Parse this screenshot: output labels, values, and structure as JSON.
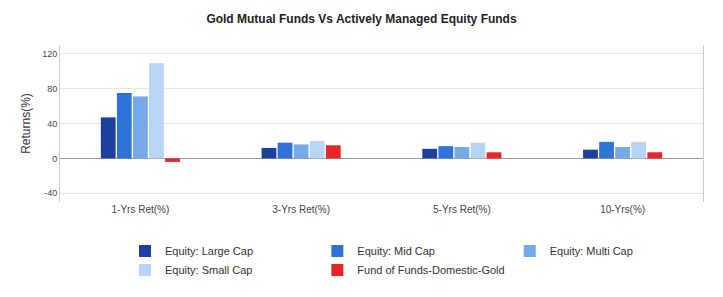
{
  "chart_data": {
    "type": "bar",
    "title": "Gold Mutual Funds Vs Actively Managed Equity Funds",
    "y_label": "Returns(%)",
    "categories": [
      "1-Yrs Ret(%)",
      "3-Yrs Ret(%)",
      "5-Yrs Ret(%)",
      "10-Yrs(%)"
    ],
    "series": [
      {
        "name": "Equity: Large Cap",
        "color": "#1f3f9e",
        "values": [
          47,
          12,
          11,
          10
        ]
      },
      {
        "name": "Equity: Mid Cap",
        "color": "#2f72d8",
        "values": [
          75,
          18,
          14,
          19
        ]
      },
      {
        "name": "Equity: Multi Cap",
        "color": "#74aae8",
        "values": [
          71,
          16,
          13,
          13
        ]
      },
      {
        "name": "Equity: Small Cap",
        "color": "#b8d5f5",
        "values": [
          109,
          20,
          18,
          19
        ]
      },
      {
        "name": "Fund of Funds-Domestic-Gold",
        "color": "#e8262a",
        "values": [
          -4,
          15,
          7,
          7
        ]
      }
    ],
    "ylim": [
      -50,
      130
    ],
    "yticks": [
      -40,
      0,
      40,
      80,
      120
    ],
    "grid": true,
    "legend": "bottom"
  }
}
